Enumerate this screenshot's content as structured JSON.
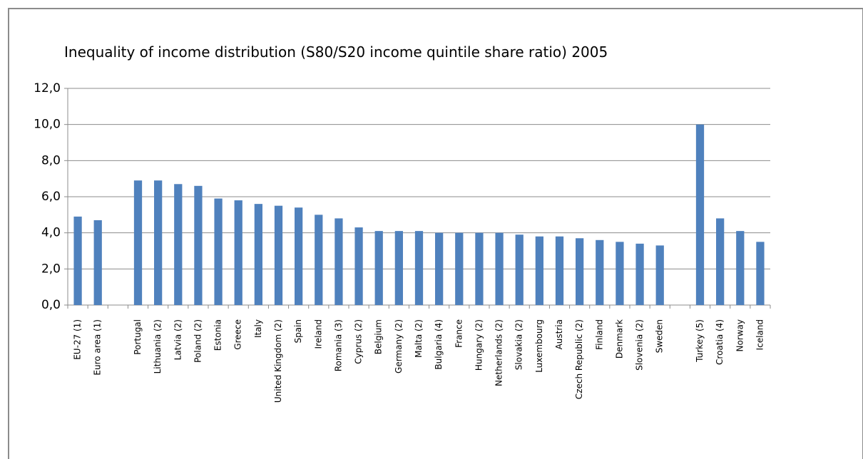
{
  "chart_data": {
    "type": "bar",
    "title": "Inequality of income distribution (S80/S20 income quintile share ratio) 2005",
    "categories": [
      "EU-27 (1)",
      "Euro area (1)",
      null,
      "Portugal",
      "Lithuania (2)",
      "Latvia (2)",
      "Poland (2)",
      "Estonia",
      "Greece",
      "Italy",
      "United Kingdom (2)",
      "Spain",
      "Ireland",
      "Romania (3)",
      "Cyprus (2)",
      "Belgium",
      "Germany (2)",
      "Malta (2)",
      "Bulgaria (4)",
      "France",
      "Hungary (2)",
      "Netherlands (2)",
      "Slovakia (2)",
      "Luxembourg",
      "Austria",
      "Czech Republic (2)",
      "Finland",
      "Denmark",
      "Slovenia (2)",
      "Sweden",
      null,
      "Turkey (5)",
      "Croatia (4)",
      "Norway",
      "Iceland"
    ],
    "values": [
      4.9,
      4.7,
      null,
      6.9,
      6.9,
      6.7,
      6.6,
      5.9,
      5.8,
      5.6,
      5.5,
      5.4,
      5.0,
      4.8,
      4.3,
      4.1,
      4.1,
      4.1,
      4.0,
      4.0,
      4.0,
      4.0,
      3.9,
      3.8,
      3.8,
      3.7,
      3.6,
      3.5,
      3.4,
      3.3,
      null,
      10.0,
      4.8,
      4.1,
      3.5
    ],
    "color": "#4f81bd",
    "ylim": [
      0,
      12
    ],
    "yticks": [
      {
        "value": 0,
        "label": "0,0"
      },
      {
        "value": 2,
        "label": "2,0"
      },
      {
        "value": 4,
        "label": "4,0"
      },
      {
        "value": 6,
        "label": "6,0"
      },
      {
        "value": 8,
        "label": "8,0"
      },
      {
        "value": 10,
        "label": "10,0"
      },
      {
        "value": 12,
        "label": "12,0"
      }
    ],
    "grid": true
  }
}
